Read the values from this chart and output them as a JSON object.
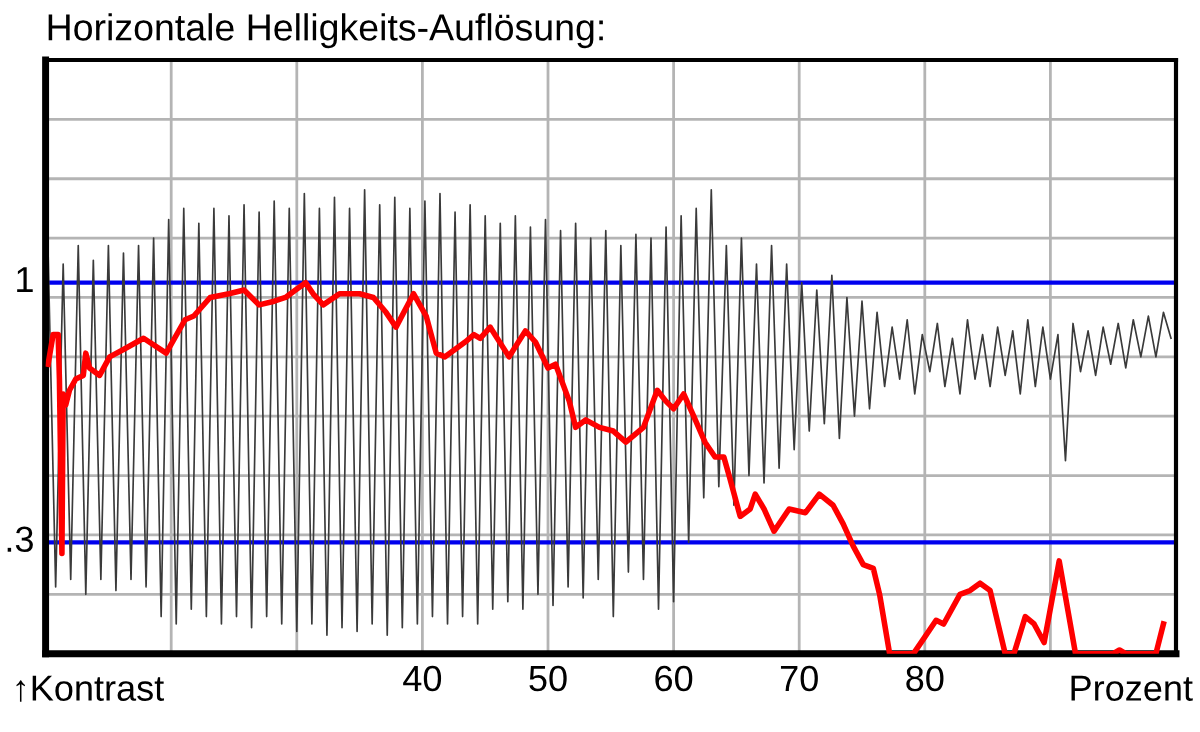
{
  "chart_data": {
    "type": "line",
    "title": "Horizontale Helligkeits-Auflösung:",
    "xlabel": "Prozent",
    "annotations": [
      "↑Kontrast"
    ],
    "xlim": [
      10,
      100
    ],
    "ylim": [
      0,
      1.6
    ],
    "xticks": [
      {
        "value": 20,
        "label": null
      },
      {
        "value": 30,
        "label": null
      },
      40,
      50,
      60,
      70,
      80,
      {
        "value": 90,
        "label": null
      }
    ],
    "yticks": [
      {
        "value": 0.16,
        "label": null
      },
      {
        "value": 0.32,
        "label": null
      },
      {
        "value": 0.48,
        "label": null
      },
      {
        "value": 0.64,
        "label": null
      },
      {
        "value": 0.8,
        "label": null
      },
      {
        "value": 0.96,
        "label": null
      },
      {
        "value": 1.12,
        "label": null
      },
      {
        "value": 1.28,
        "label": null
      },
      {
        "value": 1.44,
        "label": null
      }
    ],
    "grid": true,
    "legend": false,
    "marker": "none",
    "line_style": "solid",
    "ref_lines": [
      {
        "axis": "y",
        "value": 1,
        "label": "1",
        "color": "#0000ee"
      },
      {
        "axis": "y",
        "value": 0.3,
        "label": ".3",
        "color": "#0000ee"
      }
    ],
    "series": [
      {
        "color": "#3a3a3a",
        "x": [
          10.2,
          10.8,
          11.4,
          12,
          12.6,
          13.2,
          13.8,
          14.4,
          15,
          15.6,
          16.2,
          16.8,
          17.4,
          18,
          18.6,
          19.2,
          19.8,
          20.4,
          21,
          21.6,
          22.2,
          22.8,
          23.4,
          24,
          24.6,
          25.2,
          25.8,
          26.4,
          27,
          27.6,
          28.2,
          28.8,
          29.4,
          30,
          30.6,
          31.2,
          31.8,
          32.4,
          33,
          33.6,
          34.2,
          34.8,
          35.4,
          36,
          36.6,
          37.2,
          37.8,
          38.4,
          39,
          39.6,
          40.2,
          40.8,
          41.4,
          42,
          42.6,
          43.2,
          43.8,
          44.4,
          45,
          45.6,
          46.2,
          46.8,
          47.4,
          48,
          48.6,
          49.2,
          49.8,
          50.4,
          51,
          51.6,
          52.2,
          52.8,
          53.4,
          54,
          54.6,
          55.2,
          55.8,
          56.4,
          57,
          57.6,
          58.2,
          58.8,
          59.4,
          60,
          60.6,
          61.2,
          61.8,
          62.4,
          63,
          63.6,
          64.2,
          64.8,
          65.4,
          66,
          66.6,
          67.2,
          67.8,
          68.4,
          69,
          69.6,
          70.2,
          70.8,
          71.4,
          72,
          72.6,
          73.2,
          73.8,
          74.4,
          75,
          75.6,
          76.2,
          76.8,
          77.4,
          78,
          78.6,
          79.2,
          79.8,
          80.4,
          81,
          81.6,
          82.2,
          82.8,
          83.4,
          84,
          84.6,
          85.2,
          85.8,
          86.4,
          87,
          87.6,
          88.2,
          88.8,
          89.4,
          90,
          90.6,
          91.2,
          91.8,
          92.4,
          93,
          93.6,
          94.2,
          94.8,
          95.4,
          96,
          96.6,
          97.2,
          97.8,
          98.4,
          99,
          99.6
        ],
        "values": [
          1.08,
          0.18,
          1.05,
          0.2,
          1.1,
          0.16,
          1.06,
          0.2,
          1.1,
          0.17,
          1.08,
          0.2,
          1.1,
          0.18,
          1.12,
          0.1,
          1.17,
          0.08,
          1.2,
          0.12,
          1.16,
          0.1,
          1.2,
          0.08,
          1.18,
          0.1,
          1.21,
          0.07,
          1.19,
          0.1,
          1.22,
          0.08,
          1.2,
          0.06,
          1.24,
          0.08,
          1.2,
          0.05,
          1.23,
          0.07,
          1.2,
          0.06,
          1.25,
          0.08,
          1.21,
          0.05,
          1.23,
          0.07,
          1.2,
          0.08,
          1.22,
          0.1,
          1.24,
          0.08,
          1.19,
          0.1,
          1.21,
          0.08,
          1.18,
          0.12,
          1.16,
          0.14,
          1.18,
          0.12,
          1.15,
          0.16,
          1.17,
          0.13,
          1.14,
          0.18,
          1.16,
          0.15,
          1.12,
          0.2,
          1.14,
          0.1,
          1.1,
          0.22,
          1.13,
          0.2,
          1.12,
          0.12,
          1.15,
          0.14,
          1.18,
          0.3,
          1.2,
          0.42,
          1.25,
          0.45,
          1.1,
          0.4,
          1.12,
          0.48,
          1.05,
          0.46,
          1.1,
          0.5,
          1.05,
          0.55,
          1.0,
          0.6,
          0.98,
          0.62,
          1.02,
          0.58,
          0.96,
          0.64,
          0.95,
          0.66,
          0.92,
          0.72,
          0.88,
          0.74,
          0.9,
          0.7,
          0.86,
          0.76,
          0.89,
          0.72,
          0.85,
          0.7,
          0.9,
          0.74,
          0.86,
          0.72,
          0.88,
          0.75,
          0.87,
          0.7,
          0.9,
          0.72,
          0.88,
          0.74,
          0.86,
          0.52,
          0.89,
          0.76,
          0.87,
          0.75,
          0.88,
          0.78,
          0.89,
          0.77,
          0.9,
          0.8,
          0.91,
          0.8,
          0.92,
          0.85
        ]
      },
      {
        "color": "#ff0000",
        "x": [
          10.2,
          10.6,
          11.0,
          11.1,
          11.3,
          11.4,
          11.6,
          11.9,
          12.4,
          13.0,
          13.2,
          13.5,
          14.3,
          15.1,
          16.2,
          17.8,
          19.6,
          21.1,
          21.8,
          23.1,
          24.6,
          25.8,
          27.0,
          28.2,
          29.1,
          29.9,
          30.7,
          31.3,
          32.1,
          33.4,
          35.0,
          36.1,
          37.1,
          37.9,
          39.3,
          40.3,
          41.1,
          41.8,
          43.4,
          44.1,
          44.6,
          45.4,
          46.9,
          48.2,
          49.0,
          50.0,
          50.6,
          51.7,
          52.2,
          53.0,
          54.1,
          55.2,
          56.2,
          57.6,
          58.7,
          59.4,
          60.0,
          60.8,
          61.6,
          62.5,
          63.3,
          64.0,
          64.5,
          65.3,
          66.1,
          66.5,
          67.2,
          68.0,
          69.2,
          70.5,
          71.6,
          72.7,
          73.5,
          74.3,
          75.1,
          75.9,
          76.4,
          77.2,
          79.1,
          79.9,
          80.9,
          81.5,
          82.8,
          83.6,
          84.4,
          85.2,
          86.4,
          87.1,
          88.0,
          88.7,
          89.5,
          90.7,
          92.0,
          95.0,
          95.5,
          96.0,
          98.4,
          99.0
        ],
        "values": [
          0.78,
          0.86,
          0.86,
          0.74,
          0.27,
          0.7,
          0.67,
          0.71,
          0.74,
          0.75,
          0.81,
          0.77,
          0.75,
          0.8,
          0.82,
          0.85,
          0.81,
          0.9,
          0.91,
          0.96,
          0.97,
          0.98,
          0.94,
          0.95,
          0.96,
          0.98,
          1.0,
          0.97,
          0.94,
          0.97,
          0.97,
          0.96,
          0.92,
          0.88,
          0.97,
          0.91,
          0.81,
          0.8,
          0.84,
          0.86,
          0.85,
          0.88,
          0.8,
          0.87,
          0.84,
          0.77,
          0.78,
          0.68,
          0.61,
          0.63,
          0.61,
          0.6,
          0.57,
          0.61,
          0.71,
          0.68,
          0.66,
          0.7,
          0.64,
          0.57,
          0.53,
          0.53,
          0.47,
          0.37,
          0.39,
          0.43,
          0.39,
          0.33,
          0.39,
          0.38,
          0.43,
          0.4,
          0.35,
          0.29,
          0.24,
          0.23,
          0.16,
          0.0,
          0.0,
          0.04,
          0.09,
          0.08,
          0.16,
          0.17,
          0.19,
          0.17,
          0.0,
          0.0,
          0.1,
          0.08,
          0.03,
          0.25,
          0.0,
          0.0,
          0.01,
          0.0,
          0.0,
          0.08
        ]
      }
    ]
  }
}
